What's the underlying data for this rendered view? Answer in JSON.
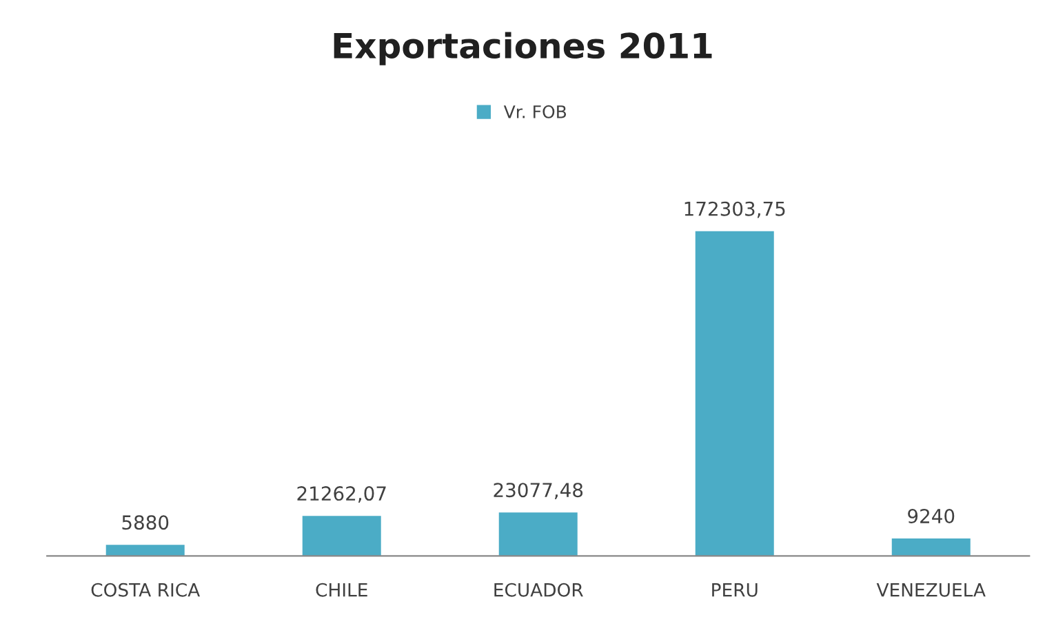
{
  "chart_data": {
    "type": "bar",
    "title": "Exportaciones 2011",
    "categories": [
      "COSTA RICA",
      "CHILE",
      "ECUADOR",
      "PERU",
      "VENEZUELA"
    ],
    "series": [
      {
        "name": "Vr. FOB",
        "color": "#4bacc6",
        "values": [
          5880,
          21262.07,
          23077.48,
          172303.75,
          9240
        ],
        "value_labels": [
          "5880",
          "21262,07",
          "23077,48",
          "172303,75",
          "9240"
        ]
      }
    ],
    "legend": "top"
  }
}
